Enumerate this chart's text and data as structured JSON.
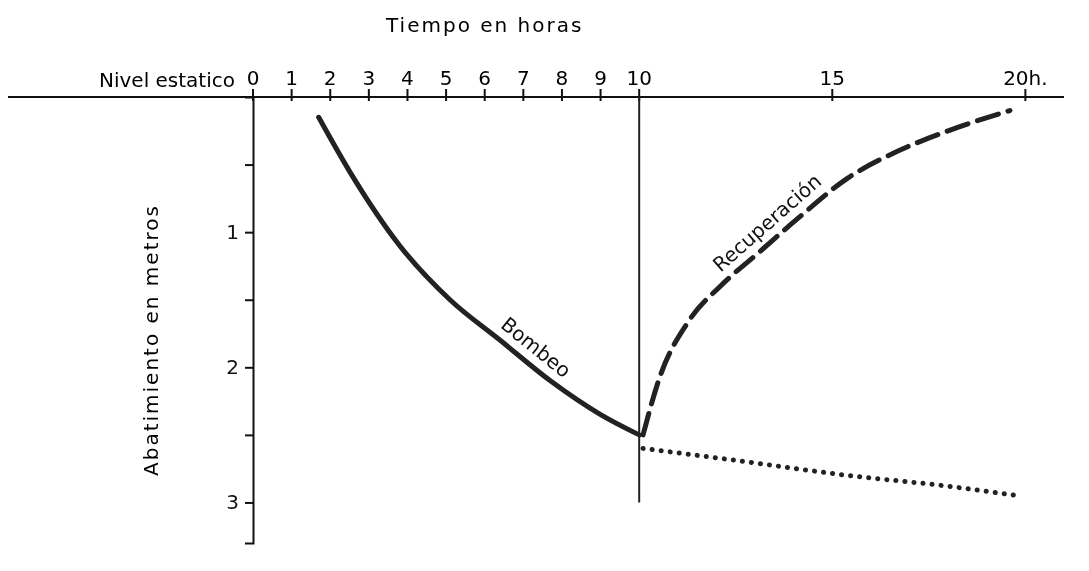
{
  "chart_data": {
    "type": "line",
    "xlabel": "Tiempo en horas",
    "ylabel": "Abatimiento en metros",
    "annotations": [
      "Nivel estatico"
    ],
    "xlim": [
      0,
      21
    ],
    "ylim": [
      3.3,
      0
    ],
    "xticks": [
      0,
      1,
      2,
      3,
      4,
      5,
      6,
      7,
      8,
      9,
      10,
      15,
      {
        "value": 20,
        "label": "20h."
      }
    ],
    "yticks": [
      {
        "value": 0.5,
        "label": null
      },
      1,
      {
        "value": 1.5,
        "label": null
      },
      2,
      {
        "value": 2.5,
        "label": null
      },
      3
    ],
    "grid": false,
    "ref_lines": [
      {
        "axis": "x",
        "value": 10,
        "label": null,
        "color": "#222222"
      }
    ],
    "series": [
      {
        "name": "Bombeo",
        "color": "#222222",
        "line_style": "solid",
        "x": [
          1.7,
          2.5,
          3.8,
          5.1,
          6.4,
          7.7,
          9.0,
          10
        ],
        "values": [
          0.15,
          0.55,
          1.1,
          1.5,
          1.8,
          2.1,
          2.35,
          2.5
        ]
      },
      {
        "name": "Recuperación",
        "color": "#222222",
        "line_style": "dashed",
        "x": [
          10.1,
          10.5,
          11.3,
          12.1,
          13.1,
          14.1,
          15.4,
          16.7,
          18,
          19.6
        ],
        "values": [
          2.5,
          2.1,
          1.65,
          1.4,
          1.15,
          0.9,
          0.6,
          0.4,
          0.25,
          0.1
        ]
      },
      {
        "color": "#222222",
        "line_style": "dotted",
        "x": [
          10.1,
          12.8,
          15.4,
          18,
          19.8
        ],
        "values": [
          2.6,
          2.7,
          2.8,
          2.88,
          2.95
        ]
      }
    ]
  }
}
